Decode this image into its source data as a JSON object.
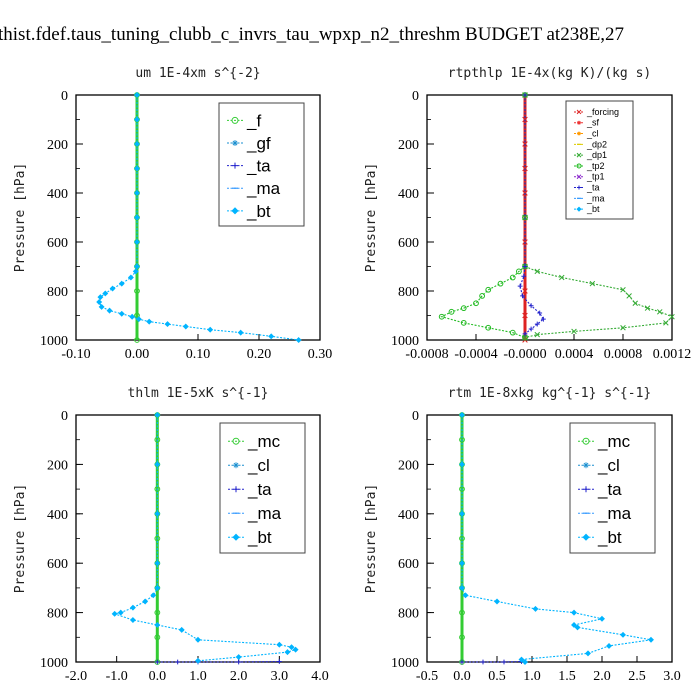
{
  "title": "thist.fdef.taus_tuning_clubb_c_invrs_tau_wpxp_n2_threshm  BUDGET at238E,27",
  "chart_data": [
    {
      "type": "line",
      "title": "um   1E-4xm s^{-2}",
      "ylabel": "Pressure [hPa]",
      "xlim": [
        -0.1,
        0.3
      ],
      "ylim": [
        1000,
        0
      ],
      "xticks": [
        -0.1,
        0.0,
        0.1,
        0.2,
        0.3
      ],
      "xtick_labels": [
        "-0.10",
        "0.00",
        "0.10",
        "0.20",
        "0.30"
      ],
      "yticks": [
        0,
        200,
        400,
        600,
        800,
        1000
      ],
      "ytick_labels": [
        "0",
        "200",
        "400",
        "600",
        "800",
        "1000"
      ],
      "legend_position": "top-right",
      "series": [
        {
          "name": "_f",
          "color": "#33cc33",
          "marker": "circle",
          "x": [
            0,
            0,
            0,
            0,
            0,
            0,
            0,
            0,
            0,
            0,
            0
          ],
          "y": [
            0,
            100,
            200,
            300,
            400,
            500,
            600,
            700,
            800,
            900,
            1000
          ]
        },
        {
          "name": "_gf",
          "color": "#1a8fd0",
          "marker": "star",
          "x": [],
          "y": []
        },
        {
          "name": "_ta",
          "color": "#2222cc",
          "marker": "plus",
          "x": [],
          "y": []
        },
        {
          "name": "_ma",
          "color": "#3399ff",
          "marker": "dash",
          "x": [],
          "y": []
        },
        {
          "name": "_bt",
          "color": "#00b4ff",
          "marker": "diamond",
          "x": [
            0,
            0,
            0,
            0,
            0,
            0,
            0,
            0,
            -0.002,
            -0.01,
            -0.025,
            -0.04,
            -0.052,
            -0.06,
            -0.062,
            -0.058,
            -0.045,
            -0.025,
            -0.008,
            0.003,
            0.02,
            0.05,
            0.08,
            0.12,
            0.17,
            0.22,
            0.265
          ],
          "y": [
            0,
            100,
            200,
            300,
            400,
            500,
            600,
            700,
            720,
            745,
            770,
            790,
            810,
            825,
            845,
            865,
            880,
            893,
            905,
            915,
            925,
            935,
            945,
            958,
            970,
            985,
            1000
          ]
        }
      ]
    },
    {
      "type": "line",
      "title": "rtpthlp   1E-4x(kg K)/(kg s)",
      "ylabel": "Pressure [hPa]",
      "xlim": [
        -0.0008,
        0.0012
      ],
      "ylim": [
        1000,
        0
      ],
      "xticks": [
        -0.0008,
        -0.0004,
        0.0,
        0.0004,
        0.0008,
        0.0012
      ],
      "xtick_labels": [
        "-0.0008",
        "-0.0004",
        "-0.0000",
        "0.0004",
        "0.0008",
        "0.0012"
      ],
      "yticks": [
        0,
        200,
        400,
        600,
        800,
        1000
      ],
      "ytick_labels": [
        "0",
        "200",
        "400",
        "600",
        "800",
        "1000"
      ],
      "legend_position": "top-right",
      "series": [
        {
          "name": "_forcing",
          "color": "#dd2222",
          "marker": "cross",
          "x": [
            0,
            0,
            0,
            0,
            0,
            0,
            0,
            0,
            0,
            0,
            0
          ],
          "y": [
            0,
            100,
            200,
            300,
            400,
            500,
            600,
            700,
            800,
            900,
            1000
          ]
        },
        {
          "name": "_sf",
          "color": "#ee3333",
          "marker": "star",
          "x": [],
          "y": []
        },
        {
          "name": "_cl",
          "color": "#ff9900",
          "marker": "star",
          "x": [],
          "y": []
        },
        {
          "name": "_dp2",
          "color": "#ddcc00",
          "marker": "dash",
          "x": [],
          "y": []
        },
        {
          "name": "_dp1",
          "color": "#33aa33",
          "marker": "cross",
          "x": [
            0,
            0,
            0,
            0.0001,
            0.0003,
            0.00055,
            0.0008,
            0.00085,
            0.0009,
            0.001,
            0.0011,
            0.0012,
            0.00115,
            0.0008,
            0.0004,
            0.0001,
            0
          ],
          "y": [
            0,
            500,
            700,
            720,
            745,
            770,
            795,
            820,
            850,
            870,
            885,
            905,
            930,
            950,
            965,
            978,
            990
          ]
        },
        {
          "name": "_tp2",
          "color": "#22bb22",
          "marker": "circle",
          "x": [
            0,
            0,
            0,
            -5e-05,
            -0.0001,
            -0.0002,
            -0.0003,
            -0.00035,
            -0.0004,
            -0.0005,
            -0.0006,
            -0.00068,
            -0.0005,
            -0.0003,
            -0.0001,
            0
          ],
          "y": [
            0,
            500,
            700,
            720,
            745,
            770,
            795,
            820,
            850,
            870,
            885,
            905,
            930,
            950,
            970,
            990
          ]
        },
        {
          "name": "_tp1",
          "color": "#8822cc",
          "marker": "cross",
          "x": [],
          "y": []
        },
        {
          "name": "_ta",
          "color": "#2222cc",
          "marker": "plus",
          "x": [
            0,
            0,
            -1e-05,
            -4e-05,
            -2e-05,
            5e-05,
            0.00012,
            0.00015,
            0.0001,
            5e-05,
            0
          ],
          "y": [
            0,
            700,
            740,
            780,
            820,
            860,
            890,
            915,
            935,
            955,
            975
          ]
        },
        {
          "name": "_ma",
          "color": "#3399ff",
          "marker": "dash",
          "x": [],
          "y": []
        },
        {
          "name": "_bt",
          "color": "#00b4ff",
          "marker": "diamond",
          "x": [],
          "y": []
        }
      ]
    },
    {
      "type": "line",
      "title": "thlm   1E-5xK s^{-1}",
      "ylabel": "Pressure [hPa]",
      "xlim": [
        -2.0,
        4.0
      ],
      "ylim": [
        1000,
        0
      ],
      "xticks": [
        -2,
        -1,
        0,
        1,
        2,
        3,
        4
      ],
      "xtick_labels": [
        "-2.0",
        "-1.0",
        "0.0",
        "1.0",
        "2.0",
        "3.0",
        "4.0"
      ],
      "yticks": [
        0,
        200,
        400,
        600,
        800,
        1000
      ],
      "ytick_labels": [
        "0",
        "200",
        "400",
        "600",
        "800",
        "1000"
      ],
      "legend_position": "top-right",
      "series": [
        {
          "name": "_mc",
          "color": "#33cc33",
          "marker": "circle",
          "x": [
            0,
            0,
            0,
            0,
            0,
            0,
            0,
            0,
            0,
            0,
            0
          ],
          "y": [
            0,
            100,
            200,
            300,
            400,
            500,
            600,
            700,
            800,
            900,
            1000
          ]
        },
        {
          "name": "_cl",
          "color": "#1a8fd0",
          "marker": "star",
          "x": [],
          "y": []
        },
        {
          "name": "_ta",
          "color": "#2222cc",
          "marker": "plus",
          "x": [
            0,
            0.5,
            1.0,
            2.0,
            3.0
          ],
          "y": [
            1000,
            1000,
            1000,
            1000,
            998
          ]
        },
        {
          "name": "_ma",
          "color": "#3399ff",
          "marker": "dash",
          "x": [],
          "y": []
        },
        {
          "name": "_bt",
          "color": "#00b4ff",
          "marker": "diamond",
          "x": [
            0,
            0,
            0,
            0,
            0,
            -0.1,
            -0.3,
            -0.6,
            -0.9,
            -1.05,
            -0.6,
            0,
            0.6,
            1.0,
            3.0,
            3.3,
            3.4,
            3.2,
            2.0,
            1.0
          ],
          "y": [
            0,
            200,
            400,
            600,
            700,
            730,
            755,
            780,
            800,
            805,
            830,
            850,
            870,
            910,
            930,
            940,
            950,
            960,
            980,
            995
          ]
        }
      ]
    },
    {
      "type": "line",
      "title": "rtm   1E-8xkg kg^{-1} s^{-1}",
      "ylabel": "Pressure [hPa]",
      "xlim": [
        -0.5,
        3.0
      ],
      "ylim": [
        1000,
        0
      ],
      "xticks": [
        -0.5,
        0.0,
        0.5,
        1.0,
        1.5,
        2.0,
        2.5,
        3.0
      ],
      "xtick_labels": [
        "-0.5",
        "0.0",
        "0.5",
        "1.0",
        "1.5",
        "2.0",
        "2.5",
        "3.0"
      ],
      "yticks": [
        0,
        200,
        400,
        600,
        800,
        1000
      ],
      "ytick_labels": [
        "0",
        "200",
        "400",
        "600",
        "800",
        "1000"
      ],
      "legend_position": "top-right",
      "series": [
        {
          "name": "_mc",
          "color": "#33cc33",
          "marker": "circle",
          "x": [
            0,
            0,
            0,
            0,
            0,
            0,
            0,
            0,
            0,
            0,
            0
          ],
          "y": [
            0,
            100,
            200,
            300,
            400,
            500,
            600,
            700,
            800,
            900,
            1000
          ]
        },
        {
          "name": "_cl",
          "color": "#1a8fd0",
          "marker": "star",
          "x": [],
          "y": []
        },
        {
          "name": "_ta",
          "color": "#2222cc",
          "marker": "plus",
          "x": [
            0,
            0.3,
            0.6,
            0.85
          ],
          "y": [
            1000,
            1000,
            1000,
            998
          ]
        },
        {
          "name": "_ma",
          "color": "#3399ff",
          "marker": "dash",
          "x": [],
          "y": []
        },
        {
          "name": "_bt",
          "color": "#00b4ff",
          "marker": "diamond",
          "x": [
            0,
            0,
            0,
            0,
            0,
            0.05,
            0.5,
            1.05,
            1.6,
            2.0,
            1.6,
            1.65,
            2.3,
            2.7,
            2.1,
            1.8,
            0.85,
            0.9
          ],
          "y": [
            0,
            200,
            400,
            600,
            700,
            730,
            755,
            785,
            800,
            825,
            850,
            860,
            890,
            910,
            935,
            965,
            990,
            1000
          ]
        }
      ]
    }
  ]
}
